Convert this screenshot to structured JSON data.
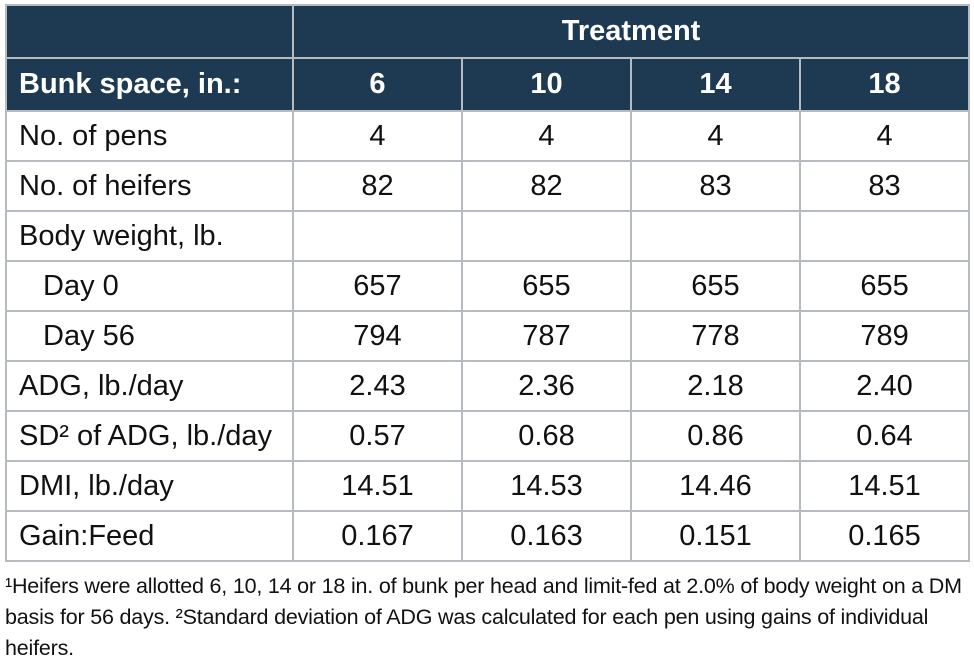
{
  "table": {
    "header": {
      "treatment_label": "Treatment",
      "bunk_space_label": "Bunk space, in.:",
      "treatments": [
        "6",
        "10",
        "14",
        "18"
      ]
    },
    "rows": [
      {
        "label": "No. of pens",
        "indent": false,
        "values": [
          "4",
          "4",
          "4",
          "4"
        ]
      },
      {
        "label": "No. of heifers",
        "indent": false,
        "values": [
          "82",
          "82",
          "83",
          "83"
        ]
      },
      {
        "label": "Body weight, lb.",
        "indent": false,
        "values": [
          "",
          "",
          "",
          ""
        ]
      },
      {
        "label": "Day 0",
        "indent": true,
        "values": [
          "657",
          "655",
          "655",
          "655"
        ]
      },
      {
        "label": "Day 56",
        "indent": true,
        "values": [
          "794",
          "787",
          "778",
          "789"
        ]
      },
      {
        "label": "ADG, lb./day",
        "indent": false,
        "values": [
          "2.43",
          "2.36",
          "2.18",
          "2.40"
        ]
      },
      {
        "label": "SD² of ADG, lb./day",
        "indent": false,
        "values": [
          "0.57",
          "0.68",
          "0.86",
          "0.64"
        ]
      },
      {
        "label": "DMI, lb./day",
        "indent": false,
        "values": [
          "14.51",
          "14.53",
          "14.46",
          "14.51"
        ]
      },
      {
        "label": "Gain:Feed",
        "indent": false,
        "values": [
          "0.167",
          "0.163",
          "0.151",
          "0.165"
        ]
      }
    ],
    "footnotes": "¹Heifers were allotted 6, 10, 14 or 18 in. of bunk per head and limit-fed at 2.0% of body weight on a DM basis for 56 days. ²Standard deviation of ADG was calculated for each pen using gains of individual heifers."
  },
  "colors": {
    "header_bg": "#1d3a52",
    "header_text": "#ffffff",
    "border": "#b5bbc1",
    "body_text": "#111111"
  }
}
